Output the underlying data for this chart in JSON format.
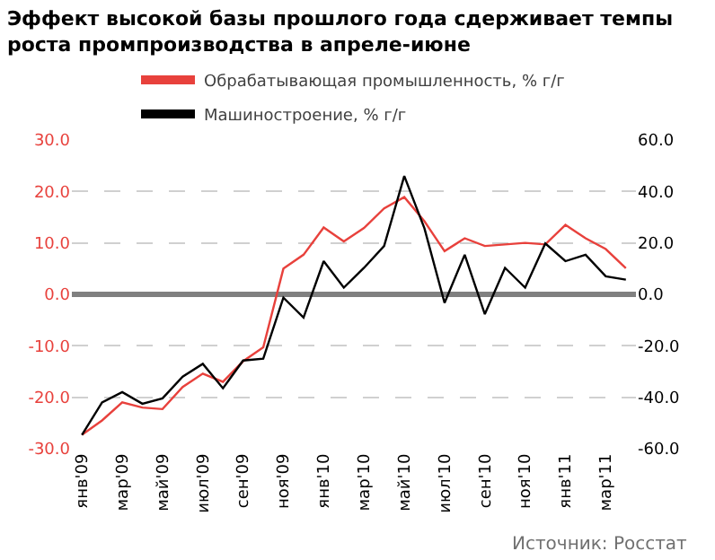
{
  "chart_data": {
    "type": "line",
    "title": "Эффект высокой базы прошлого года сдерживает темпы роста промпроизводства в апреле-июне",
    "categories": [
      "янв'09",
      null,
      "мар'09",
      null,
      "май'09",
      null,
      "июл'09",
      null,
      "сен'09",
      null,
      "ноя'09",
      null,
      "янв'10",
      null,
      "мар'10",
      null,
      "май'10",
      null,
      "июл'10",
      null,
      "сен'10",
      null,
      "ноя'10",
      null,
      "янв'11",
      null,
      "мар'11",
      null
    ],
    "series": [
      {
        "name": "Обрабатывающая промышленность, % г/г",
        "color": "#e8413c",
        "values": [
          -27.3,
          -24.5,
          -21,
          -22,
          -22.3,
          -18,
          -15.4,
          -17,
          -13,
          -10.3,
          5,
          7.7,
          13,
          10.3,
          12.9,
          16.7,
          18.9,
          14.2,
          8.4,
          10.9,
          9.4,
          9.7,
          10,
          9.7,
          13.5,
          10.9,
          8.8,
          5.1
        ]
      },
      {
        "name": "Машиностроение, % г/г",
        "color": "#000000",
        "axis": "y2",
        "values": [
          -54.6,
          -42,
          -38,
          -42.5,
          -40.4,
          -32,
          -27,
          -36.5,
          -25.7,
          -25,
          -1.3,
          -9,
          12.9,
          2.6,
          10.3,
          18.8,
          46,
          25.7,
          -3.3,
          15.4,
          -7.7,
          10.3,
          2.6,
          19.8,
          12.9,
          15.4,
          7,
          5.7
        ]
      }
    ],
    "ylim": [
      -30,
      30
    ],
    "yticks": [
      {
        "value": -30,
        "label": "-30.0"
      },
      {
        "value": -20,
        "label": "-20.0"
      },
      {
        "value": -10,
        "label": "-10.0"
      },
      {
        "value": 0,
        "label": "0.0"
      },
      {
        "value": 10,
        "label": "10.0"
      },
      {
        "value": 20,
        "label": "20.0"
      },
      {
        "value": 30,
        "label": "30.0"
      }
    ],
    "y2lim": [
      -60,
      60
    ],
    "y2ticks": [
      {
        "value": -60,
        "label": "-60.0"
      },
      {
        "value": -40,
        "label": "-40.0"
      },
      {
        "value": -20,
        "label": "-20.0"
      },
      {
        "value": 0,
        "label": "0.0"
      },
      {
        "value": 20,
        "label": "20.0"
      },
      {
        "value": 40,
        "label": "40.0"
      },
      {
        "value": 60,
        "label": "60.0"
      }
    ],
    "grid": "y",
    "legend": "top",
    "marker": "none",
    "annotations": [
      "Источник: Росстат"
    ]
  }
}
